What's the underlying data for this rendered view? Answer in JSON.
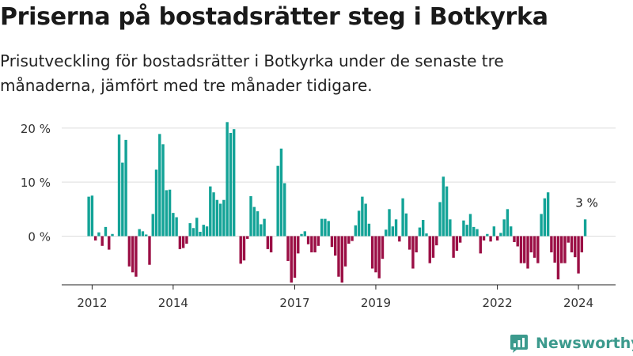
{
  "header": {
    "title": "Priserna på bostadsrätter steg i Botkyrka",
    "subtitle": "Prisutveckling för bostadsrätter i Botkyrka under de senaste tre månaderna, jämfört med tre månader tidigare."
  },
  "brand": {
    "name": "Newsworthy",
    "icon": "newsworthy-logo-icon",
    "color": "#3c9a8d"
  },
  "colors": {
    "positive": "#13a397",
    "negative": "#9b0f45",
    "grid": "#dddddd",
    "axis": "#222222"
  },
  "chart_data": {
    "type": "bar",
    "grid": true,
    "ylim": [
      -9,
      21
    ],
    "yticks": [
      0,
      10,
      20
    ],
    "ytick_labels": [
      "0 %",
      "10 %",
      "20 %"
    ],
    "xlim": [
      "2011-04",
      "2024-12"
    ],
    "xticks": [
      {
        "label": "2012",
        "at": "2012-01"
      },
      {
        "label": "2014",
        "at": "2014-01"
      },
      {
        "label": "2017",
        "at": "2017-01"
      },
      {
        "label": "2019",
        "at": "2019-01"
      },
      {
        "label": "2022",
        "at": "2022-01"
      },
      {
        "label": "2024",
        "at": "2024-01"
      }
    ],
    "start": "2011-12",
    "values": [
      7.3,
      7.5,
      -0.8,
      0.7,
      -1.8,
      1.7,
      -2.5,
      0.4,
      0,
      18.8,
      13.6,
      17.8,
      -5.6,
      -6.7,
      -7.5,
      1.3,
      0.9,
      0.3,
      -5.3,
      4.1,
      12.3,
      18.9,
      17.0,
      8.5,
      8.6,
      4.3,
      3.5,
      -2.4,
      -2.2,
      -1.4,
      2.4,
      1.5,
      3.4,
      0.8,
      2.1,
      1.8,
      9.2,
      8.1,
      6.7,
      6.0,
      6.7,
      21.1,
      19.1,
      19.8,
      0,
      -5.1,
      -4.5,
      -0.5,
      7.4,
      5.4,
      4.6,
      2.2,
      3.2,
      -2.4,
      -3.0,
      0,
      13.0,
      16.2,
      9.8,
      -4.6,
      -8.6,
      -7.7,
      -3.2,
      0.4,
      0.9,
      -1.5,
      -3.0,
      -3.0,
      -1.8,
      3.2,
      3.2,
      2.8,
      -2.0,
      -3.6,
      -7.5,
      -8.6,
      -5.6,
      -1.4,
      -0.9,
      2.0,
      4.7,
      7.3,
      6.0,
      2.3,
      -6.0,
      -6.7,
      -7.8,
      -4.2,
      1.2,
      5.0,
      1.8,
      3.1,
      -1.0,
      7.0,
      4.2,
      -2.5,
      -6.0,
      -3.0,
      1.6,
      3.0,
      0.5,
      -5.0,
      -4.0,
      -1.7,
      6.3,
      11.0,
      9.2,
      3.1,
      -4.0,
      -2.7,
      -1.2,
      2.9,
      2.1,
      4.1,
      1.7,
      1.3,
      -3.2,
      -0.8,
      0.4,
      -1.0,
      1.8,
      -0.8,
      0.6,
      3.1,
      5.0,
      1.8,
      -1.1,
      -1.9,
      -5.0,
      -5.0,
      -6.0,
      -3.0,
      -4.0,
      -5.0,
      4.1,
      7.0,
      8.1,
      -3.0,
      -4.9,
      -8.0,
      -5.0,
      -5.0,
      -1.2,
      -3.0,
      -3.9,
      -6.9,
      -3.0,
      3.1
    ],
    "annotation": {
      "text": "3 %",
      "target": "last"
    }
  }
}
